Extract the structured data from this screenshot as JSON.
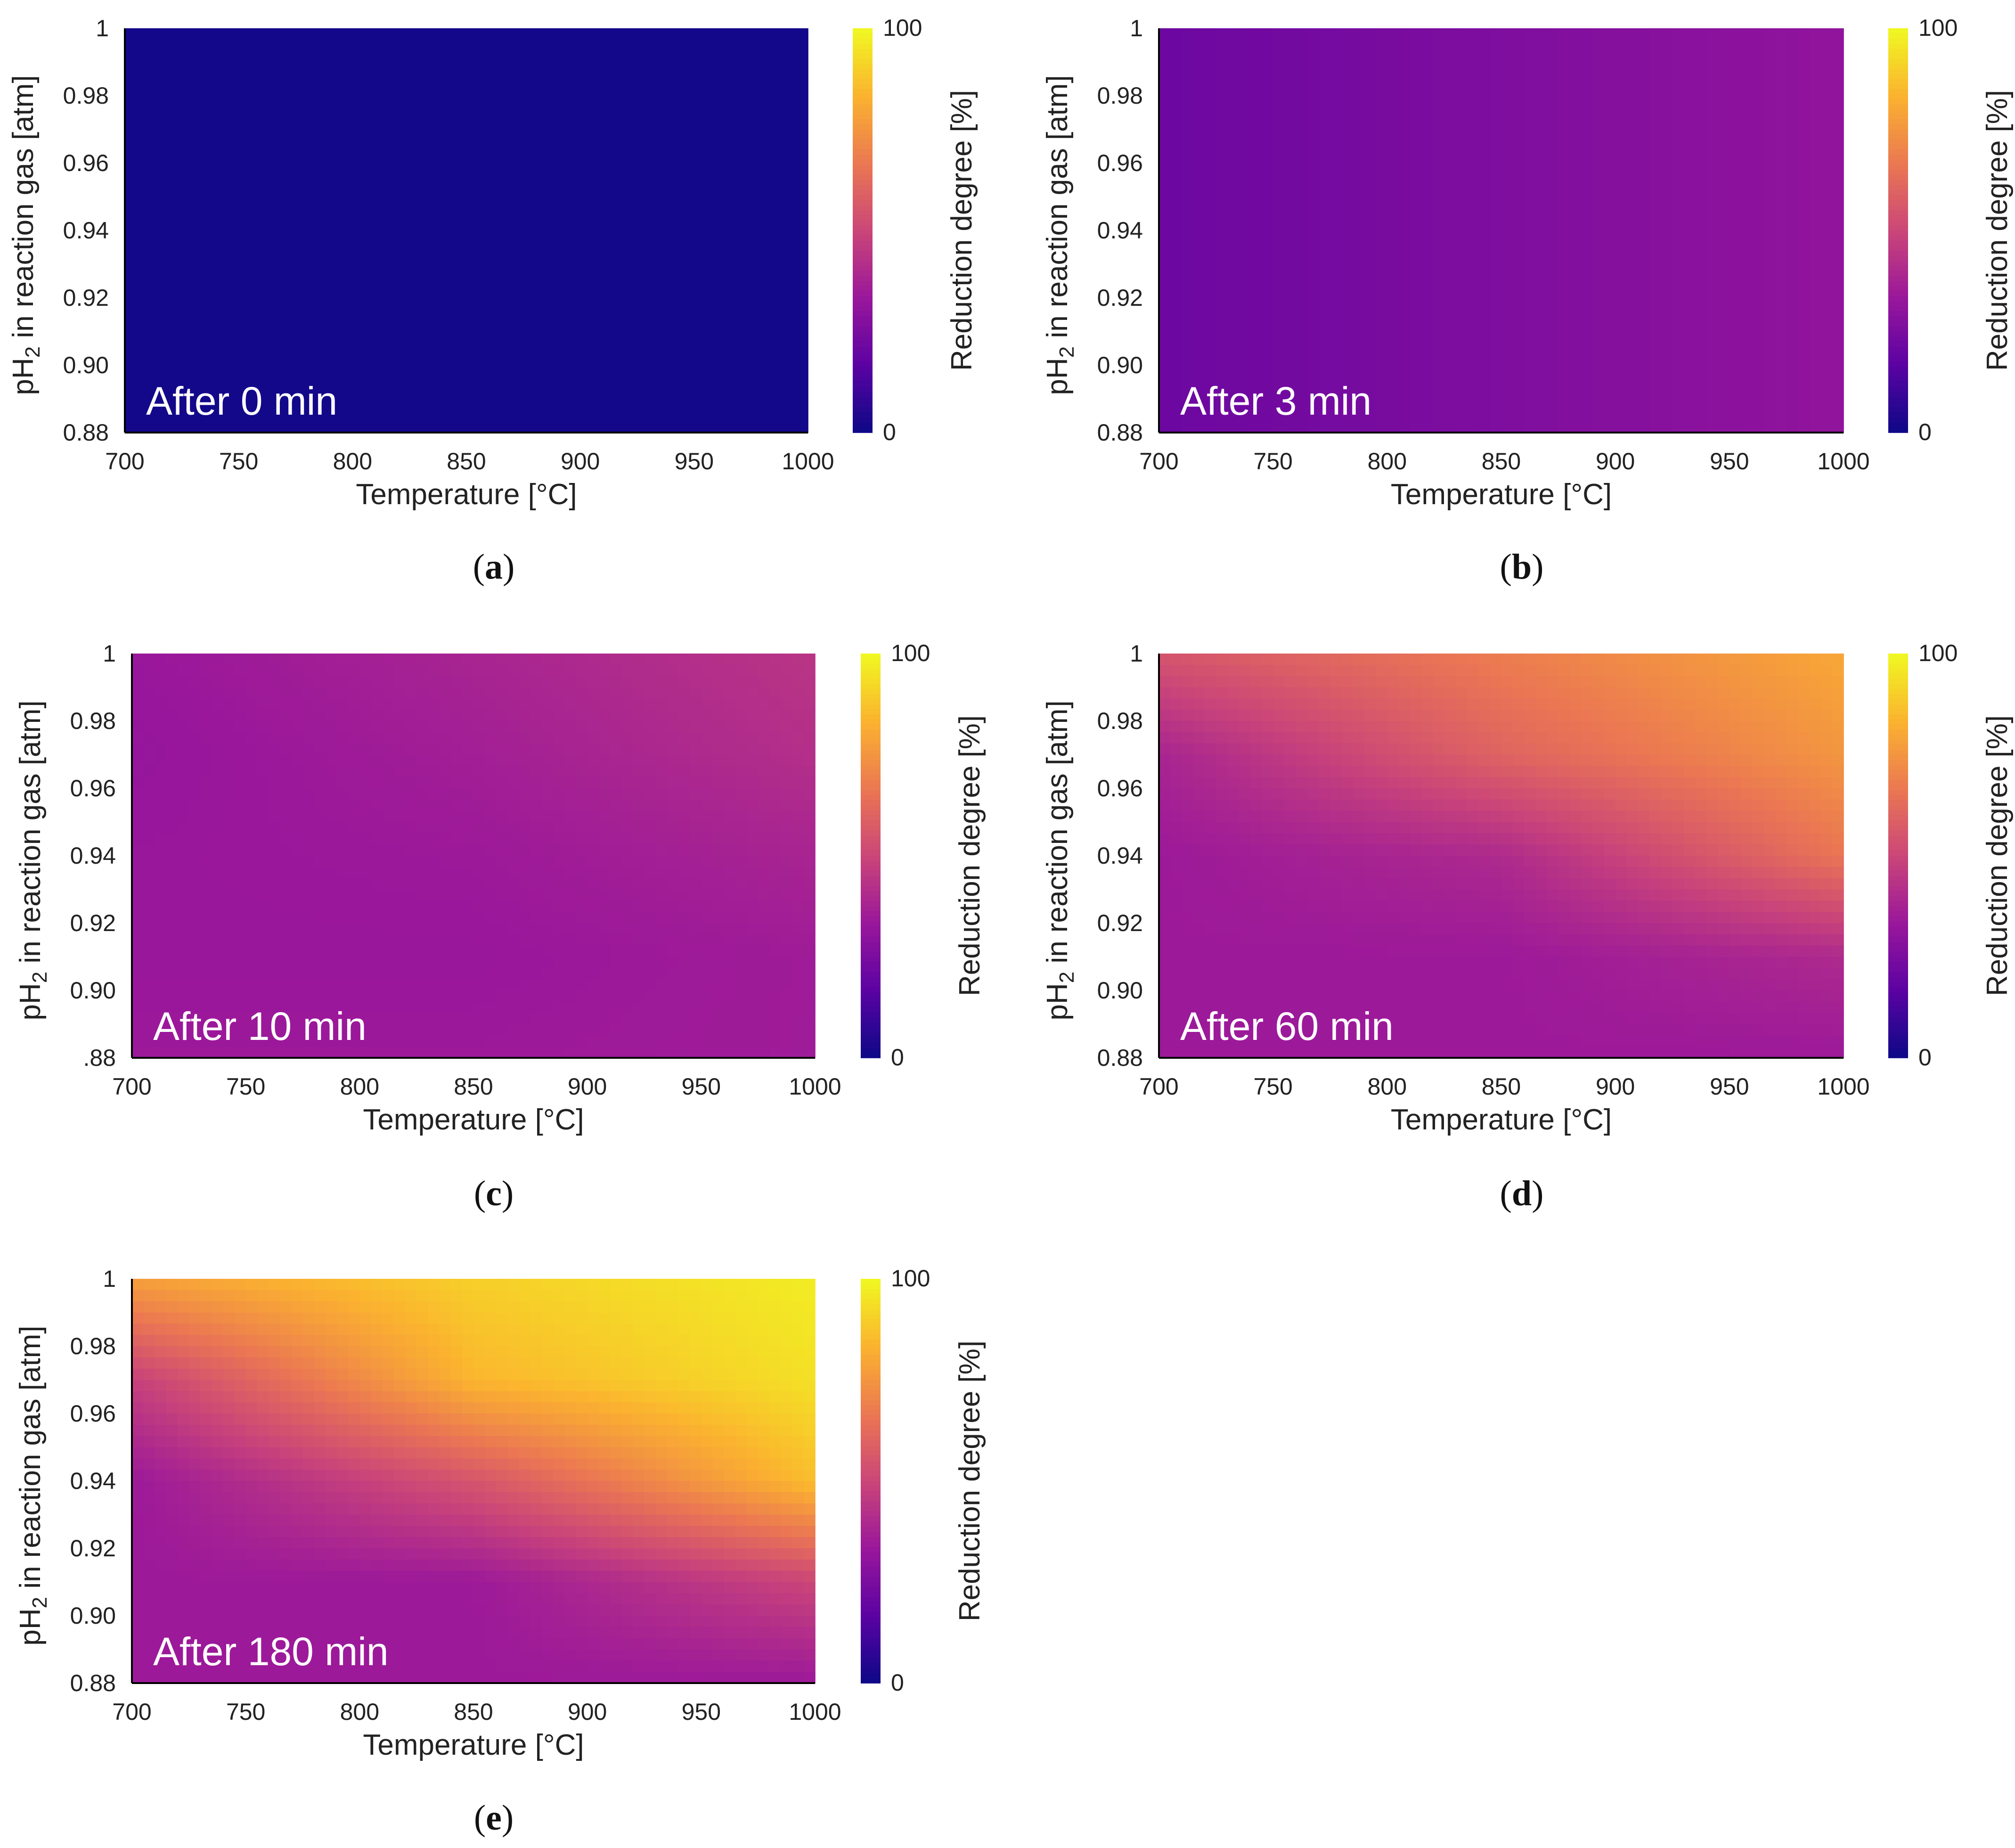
{
  "chart_data": [
    {
      "panel": "a",
      "type": "heatmap",
      "inset_label": "After 0 min",
      "time_min": 0,
      "xlabel": "Temperature [°C]",
      "ylabel": "pH2 in reaction gas [atm]",
      "ylabel_parts": {
        "pre": "pH",
        "sub": "2",
        "post": " in reaction gas [atm]"
      },
      "xlim": [
        700,
        1000
      ],
      "ylim": [
        0.88,
        1.0
      ],
      "xticks": [
        "700",
        "750",
        "800",
        "850",
        "900",
        "950",
        "1000"
      ],
      "yticks": [
        "0.88",
        "0.90",
        "0.92",
        "0.94",
        "0.96",
        "0.98",
        "1"
      ],
      "colorbar": {
        "label": "Reduction degree [%]",
        "min": 0,
        "max": 100,
        "ticks": [
          "0",
          "100"
        ]
      },
      "value_grid": {
        "x": [
          700,
          850,
          1000
        ],
        "y": [
          1.0,
          0.97,
          0.94,
          0.91,
          0.88
        ],
        "z": [
          [
            1,
            1,
            1
          ],
          [
            1,
            1,
            1
          ],
          [
            1,
            1,
            1
          ],
          [
            1,
            1,
            1
          ],
          [
            1,
            1,
            1
          ]
        ]
      }
    },
    {
      "panel": "b",
      "type": "heatmap",
      "inset_label": "After 3 min",
      "time_min": 3,
      "xlabel": "Temperature [°C]",
      "ylabel": "pH2 in reaction gas [atm]",
      "ylabel_parts": {
        "pre": "pH",
        "sub": "2",
        "post": " in reaction gas [atm]"
      },
      "xlim": [
        700,
        1000
      ],
      "ylim": [
        0.88,
        1.0
      ],
      "xticks": [
        "700",
        "750",
        "800",
        "850",
        "900",
        "950",
        "1000"
      ],
      "yticks": [
        "0.88",
        "0.90",
        "0.92",
        "0.94",
        "0.96",
        "0.98",
        "1"
      ],
      "colorbar": {
        "label": "Reduction degree [%]",
        "min": 0,
        "max": 100,
        "ticks": [
          "0",
          "100"
        ]
      },
      "value_grid": {
        "x": [
          700,
          850,
          1000
        ],
        "y": [
          1.0,
          0.97,
          0.94,
          0.91,
          0.88
        ],
        "z": [
          [
            21,
            26,
            31
          ],
          [
            21,
            26,
            31
          ],
          [
            21,
            26,
            31
          ],
          [
            21,
            26,
            31
          ],
          [
            21,
            26,
            31
          ]
        ]
      }
    },
    {
      "panel": "c",
      "type": "heatmap",
      "inset_label": "After 10 min",
      "time_min": 10,
      "xlabel": "Temperature [°C]",
      "ylabel": "pH2 in reaction gas [atm]",
      "ylabel_parts": {
        "pre": "pH",
        "sub": "2",
        "post": " in reaction gas [atm]"
      },
      "xlim": [
        700,
        1000
      ],
      "ylim": [
        0.88,
        1.0
      ],
      "xticks": [
        "700",
        "750",
        "800",
        "850",
        "900",
        "950",
        "1000"
      ],
      "yticks": [
        ".88",
        "0.90",
        "0.92",
        "0.94",
        "0.96",
        "0.98",
        "1"
      ],
      "colorbar": {
        "label": "Reduction degree [%]",
        "min": 0,
        "max": 100,
        "ticks": [
          "0",
          "100"
        ]
      },
      "value_grid": {
        "x": [
          700,
          850,
          1000
        ],
        "y": [
          1.0,
          0.97,
          0.94,
          0.91,
          0.88
        ],
        "z": [
          [
            33,
            38,
            44
          ],
          [
            32,
            36,
            42
          ],
          [
            33,
            34,
            38
          ],
          [
            33,
            33,
            35
          ],
          [
            34,
            34,
            35
          ]
        ]
      }
    },
    {
      "panel": "d",
      "type": "heatmap",
      "inset_label": "After 60 min",
      "time_min": 60,
      "xlabel": "Temperature [°C]",
      "ylabel": "pH2 in reaction gas [atm]",
      "ylabel_parts": {
        "pre": "pH",
        "sub": "2",
        "post": " in reaction gas [atm]"
      },
      "xlim": [
        700,
        1000
      ],
      "ylim": [
        0.88,
        1.0
      ],
      "xticks": [
        "700",
        "750",
        "800",
        "850",
        "900",
        "950",
        "1000"
      ],
      "yticks": [
        "0.88",
        "0.90",
        "0.92",
        "0.94",
        "0.96",
        "0.98",
        "1"
      ],
      "colorbar": {
        "label": "Reduction degree [%]",
        "min": 0,
        "max": 100,
        "ticks": [
          "0",
          "100"
        ]
      },
      "value_grid": {
        "x": [
          700,
          850,
          1000
        ],
        "y": [
          1.0,
          0.97,
          0.94,
          0.91,
          0.88
        ],
        "z": [
          [
            55,
            68,
            80
          ],
          [
            38,
            60,
            75
          ],
          [
            34,
            40,
            66
          ],
          [
            34,
            34,
            40
          ],
          [
            34,
            34,
            34
          ]
        ]
      }
    },
    {
      "panel": "e",
      "type": "heatmap",
      "inset_label": "After 180 min",
      "time_min": 180,
      "xlabel": "Temperature [°C]",
      "ylabel": "pH2 in reaction gas [atm]",
      "ylabel_parts": {
        "pre": "pH",
        "sub": "2",
        "post": " in reaction gas [atm]"
      },
      "xlim": [
        700,
        1000
      ],
      "ylim": [
        0.88,
        1.0
      ],
      "xticks": [
        "700",
        "750",
        "800",
        "850",
        "900",
        "950",
        "1000"
      ],
      "yticks": [
        "0.88",
        "0.90",
        "0.92",
        "0.94",
        "0.96",
        "0.98",
        "1"
      ],
      "colorbar": {
        "label": "Reduction degree [%]",
        "min": 0,
        "max": 100,
        "ticks": [
          "0",
          "100"
        ]
      },
      "value_grid": {
        "x": [
          700,
          850,
          1000
        ],
        "y": [
          1.0,
          0.97,
          0.94,
          0.91,
          0.88
        ],
        "z": [
          [
            78,
            90,
            97
          ],
          [
            48,
            84,
            94
          ],
          [
            34,
            55,
            86
          ],
          [
            34,
            34,
            50
          ],
          [
            34,
            34,
            34
          ]
        ]
      }
    }
  ],
  "captions": [
    "a",
    "b",
    "c",
    "d",
    "e"
  ],
  "colors": {
    "colormap": [
      "#0d0887",
      "#5b02a3",
      "#9a179b",
      "#cb4678",
      "#eb7852",
      "#fbb32f",
      "#f0f921"
    ],
    "axis": "#000000",
    "text": "#222222",
    "inset_text": "#ffffff"
  }
}
